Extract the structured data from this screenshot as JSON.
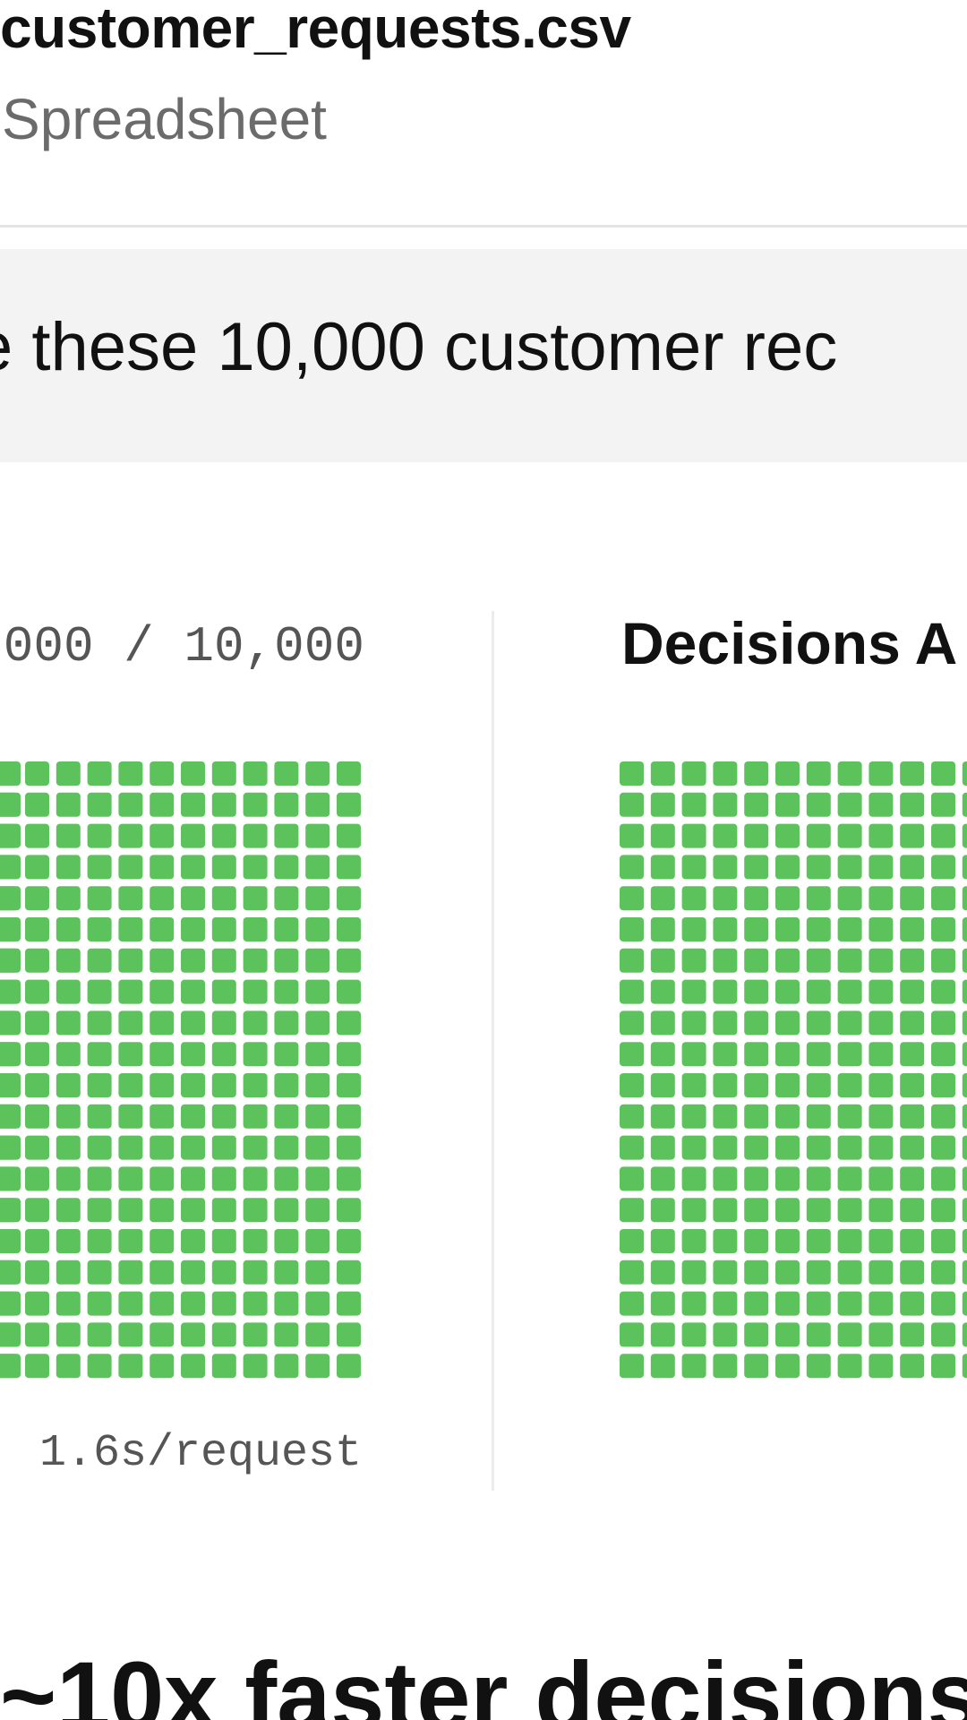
{
  "file": {
    "name": "customer_requests.csv",
    "type": "Spreadsheet"
  },
  "prompt": {
    "text": "e these 10,000 customer rec"
  },
  "left_panel": {
    "counter": "000 / 10,000",
    "rate": "1.6s/request"
  },
  "right_panel": {
    "title": "Decisions A"
  },
  "headline": "~10x faster decisions",
  "colors": {
    "cell": "#5cc35c",
    "divider": "#ececec",
    "prompt_bg": "#f3f3f3"
  }
}
